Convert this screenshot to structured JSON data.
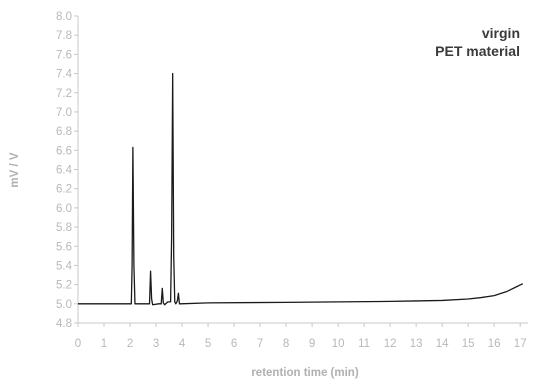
{
  "chart_data": {
    "type": "line",
    "title_lines": [
      "virgin",
      "PET material"
    ],
    "xlabel": "retention time (min)",
    "ylabel": "mV / V",
    "xlim": [
      0,
      17.3
    ],
    "ylim": [
      4.8,
      8.0
    ],
    "x_ticks": [
      0,
      1,
      2,
      3,
      4,
      5,
      6,
      7,
      8,
      9,
      10,
      11,
      12,
      13,
      14,
      15,
      16,
      17
    ],
    "y_ticks": [
      4.8,
      5.0,
      5.2,
      5.4,
      5.6,
      5.8,
      6.0,
      6.2,
      6.4,
      6.6,
      6.8,
      7.0,
      7.2,
      7.4,
      7.6,
      7.8,
      8.0
    ],
    "grid": false,
    "legend": "none",
    "line_color": "#1a1a1a",
    "series": [
      {
        "x": [
          0,
          2.05,
          2.08,
          2.11,
          2.15,
          2.19,
          2.22,
          2.6,
          2.75,
          2.79,
          2.83,
          2.87,
          3.1,
          3.2,
          3.24,
          3.28,
          3.33,
          3.45,
          3.56,
          3.6,
          3.64,
          3.68,
          3.72,
          3.76,
          3.82,
          3.86,
          3.9,
          3.95,
          5,
          8,
          10,
          12,
          13,
          14,
          15,
          15.5,
          16,
          16.5,
          16.8,
          17.1
        ],
        "y": [
          5.0,
          5.0,
          5.4,
          6.63,
          5.4,
          5.0,
          5.0,
          5.0,
          5.0,
          5.34,
          5.05,
          4.99,
          5.0,
          5.0,
          5.16,
          5.01,
          4.99,
          5.02,
          5.02,
          5.7,
          7.4,
          5.5,
          5.02,
          5.0,
          5.03,
          5.11,
          5.0,
          5.0,
          5.01,
          5.015,
          5.02,
          5.025,
          5.03,
          5.035,
          5.05,
          5.065,
          5.085,
          5.13,
          5.17,
          5.21
        ]
      }
    ]
  }
}
